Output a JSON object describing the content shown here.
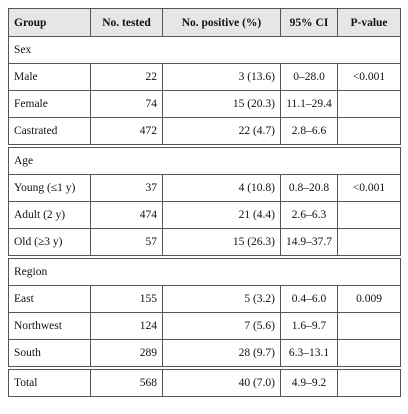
{
  "table": {
    "header": [
      "Group",
      "No. tested",
      "No. positive (%)",
      "95% CI",
      "P-value"
    ],
    "sections": [
      {
        "title": "Sex",
        "rows": [
          [
            "Male",
            "22",
            "3 (13.6)",
            "0–28.0",
            "<0.001"
          ],
          [
            "Female",
            "74",
            "15 (20.3)",
            "11.1–29.4"
          ],
          [
            "Castrated",
            "472",
            "22 (4.7)",
            "2.8–6.6"
          ]
        ]
      },
      {
        "title": "Age",
        "rows": [
          [
            "Young (≤1 y)",
            "37",
            "4 (10.8)",
            "0.8–20.8",
            "<0.001"
          ],
          [
            "Adult (2 y)",
            "474",
            "21 (4.4)",
            "2.6–6.3"
          ],
          [
            "Old (≥3 y)",
            "57",
            "15 (26.3)",
            "14.9–37.7"
          ]
        ]
      },
      {
        "title": "Region",
        "rows": [
          [
            "East",
            "155",
            "5 (3.2)",
            "0.4–6.0",
            "0.009"
          ],
          [
            "Northwest",
            "124",
            "7 (5.6)",
            "1.6–9.7"
          ],
          [
            "South",
            "289",
            "28 (9.7)",
            "6.3–13.1"
          ]
        ]
      }
    ],
    "total": [
      "Total",
      "568",
      "40 (7.0)",
      "4.9–9.2"
    ]
  }
}
